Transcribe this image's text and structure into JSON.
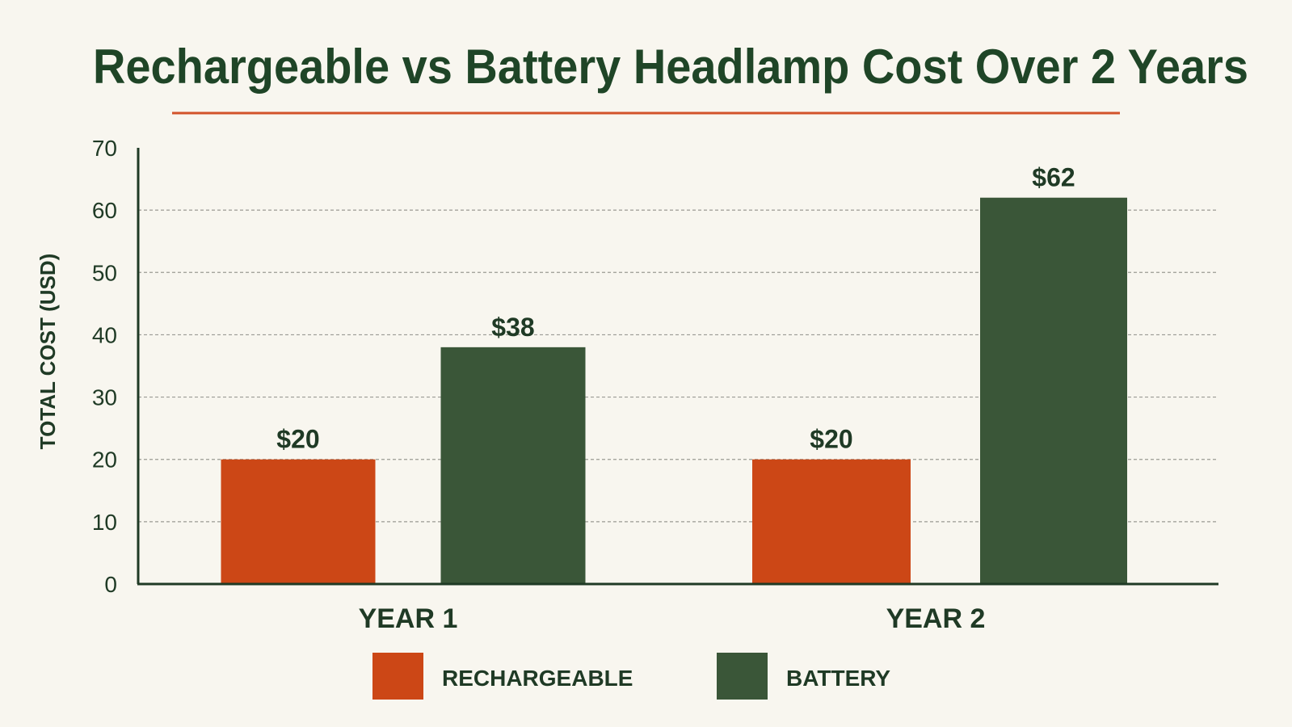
{
  "chart_data": {
    "type": "bar",
    "title": "Rechargeable vs Battery Headlamp Cost Over 2 Years",
    "ylabel": "TOTAL COST (USD)",
    "xlabel": "",
    "categories": [
      "YEAR 1",
      "YEAR 2"
    ],
    "ylim": [
      0,
      70
    ],
    "yticks": [
      0,
      10,
      20,
      30,
      40,
      50,
      60,
      70
    ],
    "grid": true,
    "legend_position": "bottom-center",
    "series": [
      {
        "name": "RECHARGEABLE",
        "values": [
          20,
          20
        ],
        "labels": [
          "$20",
          "$20"
        ],
        "color": "#cc4716"
      },
      {
        "name": "BATTERY",
        "values": [
          38,
          62
        ],
        "labels": [
          "$38",
          "$62"
        ],
        "color": "#3a5638"
      }
    ]
  },
  "colors": {
    "background": "#f8f6ef",
    "title": "#1f4527",
    "accent_rule": "#d2532a",
    "axis": "#1f3a25",
    "grid": "#9a9a94",
    "text": "#1f3a25"
  }
}
